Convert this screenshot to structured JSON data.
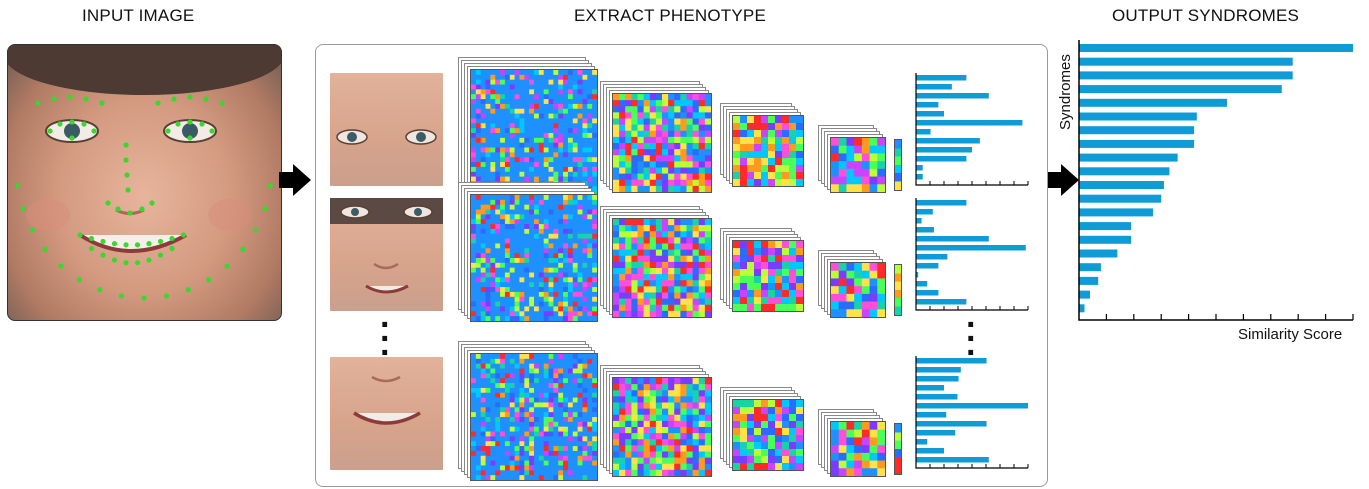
{
  "headings": {
    "input": "INPUT IMAGE",
    "extract": "EXTRACT PHENOTYPE",
    "output": "OUTPUT SYNDROMES"
  },
  "output_chart": {
    "ylabel": "Syndromes",
    "xlabel": "Similarity Score"
  },
  "colors": {
    "bar": "#0e9bd6",
    "landmark": "#39d72f",
    "arrow": "#000000"
  },
  "chart_data": {
    "type": "bar",
    "orientation": "horizontal",
    "values": [
      100,
      78,
      78,
      74,
      54,
      43,
      42,
      42,
      36,
      33,
      31,
      30,
      27,
      19,
      19,
      14,
      8,
      7,
      4,
      2
    ],
    "xlim": [
      0,
      100
    ],
    "xlabel": "Similarity Score",
    "ylabel": "Syndromes",
    "grid": false,
    "legend": "none"
  },
  "feature_histograms": [
    [
      45,
      32,
      65,
      20,
      25,
      95,
      13,
      57,
      50,
      45,
      6,
      6
    ],
    [
      45,
      15,
      5,
      16,
      65,
      98,
      28,
      20,
      2,
      10,
      20,
      45
    ],
    [
      63,
      40,
      38,
      25,
      37,
      100,
      27,
      63,
      35,
      10,
      25,
      65
    ]
  ]
}
